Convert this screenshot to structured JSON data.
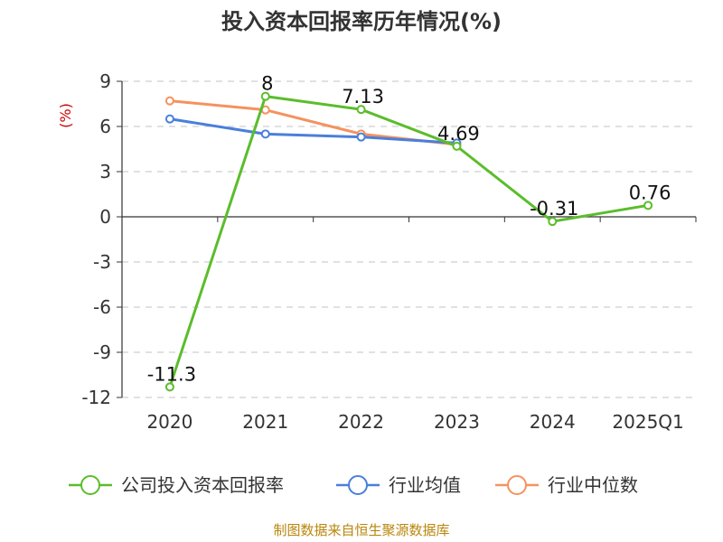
{
  "chart_data": {
    "type": "line",
    "title": "投入资本回报率历年情况(%)",
    "ylabel": "(%)",
    "categories": [
      "2020",
      "2021",
      "2022",
      "2023",
      "2024",
      "2025Q1"
    ],
    "yticks": [
      9,
      6,
      3,
      0,
      -3,
      -6,
      -9,
      -12
    ],
    "ylim": [
      -12,
      9
    ],
    "grid": true,
    "legend_position": "bottom",
    "series": [
      {
        "name": "公司投入资本回报率",
        "color": "#5bbd2b",
        "values": [
          -11.3,
          8,
          7.13,
          4.69,
          -0.31,
          0.76
        ],
        "labels": [
          "-11.3",
          "8",
          "7.13",
          "4.69",
          "-0.31",
          "0.76"
        ]
      },
      {
        "name": "行业均值",
        "color": "#4a7fdb",
        "values": [
          6.5,
          5.5,
          5.3,
          4.9,
          null,
          null
        ]
      },
      {
        "name": "行业中位数",
        "color": "#f5925f",
        "values": [
          7.7,
          7.1,
          5.5,
          4.8,
          null,
          null
        ]
      }
    ]
  },
  "source": "制图数据来自恒生聚源数据库"
}
